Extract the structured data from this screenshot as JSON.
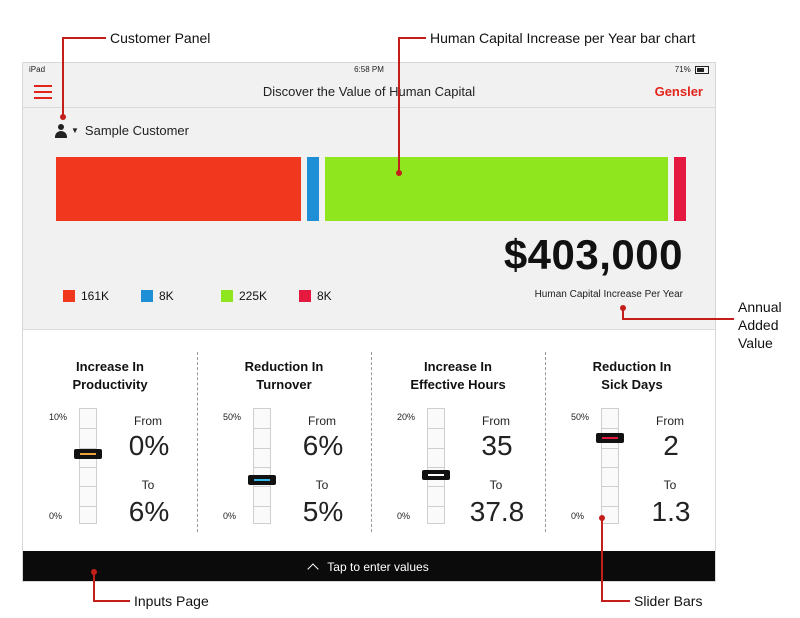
{
  "annotations": {
    "customer_panel": "Customer Panel",
    "bar_chart": "Human Capital Increase per Year bar chart",
    "annual_added_value": [
      "Annual",
      "Added",
      "Value"
    ],
    "inputs_page": "Inputs Page",
    "slider_bars": "Slider Bars"
  },
  "status_bar": {
    "device": "iPad",
    "time": "6:58 PM",
    "battery": "71%"
  },
  "nav": {
    "title": "Discover the Value of Human Capital",
    "brand": "Gensler"
  },
  "customer": {
    "name": "Sample Customer"
  },
  "colors": {
    "red": "#f2371f",
    "blue": "#1e8fd6",
    "green": "#8fe61f",
    "crimson": "#e5183f"
  },
  "chart_data": {
    "type": "bar",
    "orientation": "horizontal-stacked",
    "categories": [
      "161K",
      "8K",
      "225K",
      "8K"
    ],
    "values": [
      161,
      8,
      225,
      8
    ],
    "unit": "K",
    "colors": [
      "#f2371f",
      "#1e8fd6",
      "#8fe61f",
      "#e5183f"
    ],
    "total": "$403,000",
    "total_caption": "Human Capital Increase Per Year"
  },
  "sliders": [
    {
      "title": [
        "Increase In",
        "Productivity"
      ],
      "max": "10%",
      "min": "0%",
      "from_label": "From",
      "from": "0%",
      "to_label": "To",
      "to": "6%",
      "level": 0.6,
      "accent": "#f2a23a"
    },
    {
      "title": [
        "Reduction In",
        "Turnover"
      ],
      "max": "50%",
      "min": "0%",
      "from_label": "From",
      "from": "6%",
      "to_label": "To",
      "to": "5%",
      "level": 0.38,
      "accent": "#34b6e9"
    },
    {
      "title": [
        "Increase In",
        "Effective Hours"
      ],
      "max": "20%",
      "min": "0%",
      "from_label": "From",
      "from": "35",
      "to_label": "To",
      "to": "37.8",
      "level": 0.42,
      "accent": "#ffffff"
    },
    {
      "title": [
        "Reduction In",
        "Sick Days"
      ],
      "max": "50%",
      "min": "0%",
      "from_label": "From",
      "from": "2",
      "to_label": "To",
      "to": "1.3",
      "level": 0.74,
      "accent": "#e5183f"
    }
  ],
  "footer": {
    "cta": "Tap to enter values"
  }
}
